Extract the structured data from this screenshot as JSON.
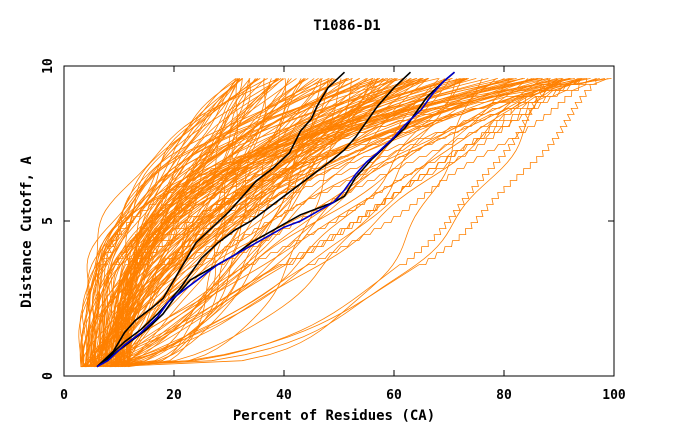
{
  "chart_data": {
    "type": "line",
    "title": "T1086-D1",
    "xlabel": "Percent of Residues (CA)",
    "ylabel": "Distance Cutoff, A",
    "xlim": [
      0,
      100
    ],
    "ylim": [
      0,
      10
    ],
    "x_ticks": [
      "0",
      "20",
      "40",
      "60",
      "80",
      "100"
    ],
    "y_ticks": [
      "0",
      "5",
      "10"
    ],
    "grid": false,
    "legend": "none",
    "colors": {
      "bulk": "#ff8000",
      "highlight": "#000000",
      "best": "#0000cc",
      "axis": "#000000"
    },
    "series": [
      {
        "style": "highlight",
        "points": [
          [
            6,
            0.3
          ],
          [
            9,
            0.8
          ],
          [
            11,
            1.4
          ],
          [
            13,
            1.8
          ],
          [
            16,
            2.2
          ],
          [
            18,
            2.5
          ],
          [
            20,
            3.1
          ],
          [
            22,
            3.7
          ],
          [
            24,
            4.3
          ],
          [
            27,
            4.8
          ],
          [
            30,
            5.3
          ],
          [
            32,
            5.7
          ],
          [
            35,
            6.3
          ],
          [
            38,
            6.7
          ],
          [
            41,
            7.2
          ],
          [
            43,
            7.9
          ],
          [
            45,
            8.3
          ],
          [
            46,
            8.7
          ],
          [
            48,
            9.3
          ],
          [
            51,
            9.8
          ]
        ]
      },
      {
        "style": "highlight",
        "points": [
          [
            6,
            0.3
          ],
          [
            8,
            0.6
          ],
          [
            11,
            1.1
          ],
          [
            14,
            1.5
          ],
          [
            17,
            2.0
          ],
          [
            19,
            2.4
          ],
          [
            21,
            2.8
          ],
          [
            23,
            3.3
          ],
          [
            25,
            3.8
          ],
          [
            28,
            4.3
          ],
          [
            31,
            4.7
          ],
          [
            34,
            5.0
          ],
          [
            37,
            5.4
          ],
          [
            40,
            5.8
          ],
          [
            43,
            6.2
          ],
          [
            46,
            6.6
          ],
          [
            49,
            7.0
          ],
          [
            51,
            7.3
          ],
          [
            53,
            7.7
          ],
          [
            55,
            8.2
          ],
          [
            57,
            8.7
          ],
          [
            60,
            9.3
          ],
          [
            63,
            9.8
          ]
        ]
      },
      {
        "style": "highlight",
        "points": [
          [
            7,
            0.4
          ],
          [
            9,
            0.7
          ],
          [
            12,
            1.1
          ],
          [
            15,
            1.5
          ],
          [
            18,
            2.0
          ],
          [
            20,
            2.5
          ],
          [
            23,
            3.1
          ],
          [
            27,
            3.5
          ],
          [
            31,
            3.9
          ],
          [
            34,
            4.3
          ],
          [
            37,
            4.6
          ],
          [
            40,
            4.9
          ],
          [
            43,
            5.2
          ],
          [
            46,
            5.4
          ],
          [
            49,
            5.6
          ],
          [
            51,
            5.8
          ],
          [
            53,
            6.4
          ],
          [
            56,
            7.0
          ],
          [
            59,
            7.5
          ],
          [
            62,
            8.0
          ],
          [
            64,
            8.5
          ],
          [
            66,
            9.0
          ],
          [
            69,
            9.5
          ],
          [
            71,
            9.8
          ]
        ]
      },
      {
        "style": "best",
        "points": [
          [
            6,
            0.3
          ],
          [
            8,
            0.5
          ],
          [
            11,
            1.0
          ],
          [
            14,
            1.4
          ],
          [
            17,
            1.9
          ],
          [
            19,
            2.4
          ],
          [
            22,
            2.8
          ],
          [
            25,
            3.2
          ],
          [
            28,
            3.6
          ],
          [
            31,
            3.9
          ],
          [
            34,
            4.2
          ],
          [
            37,
            4.5
          ],
          [
            40,
            4.8
          ],
          [
            43,
            5.0
          ],
          [
            46,
            5.3
          ],
          [
            49,
            5.6
          ],
          [
            51,
            6.0
          ],
          [
            53,
            6.5
          ],
          [
            55,
            6.9
          ],
          [
            57,
            7.2
          ],
          [
            60,
            7.7
          ],
          [
            62,
            8.1
          ],
          [
            65,
            8.6
          ],
          [
            67,
            9.1
          ],
          [
            69,
            9.5
          ],
          [
            71,
            9.8
          ]
        ]
      }
    ]
  }
}
